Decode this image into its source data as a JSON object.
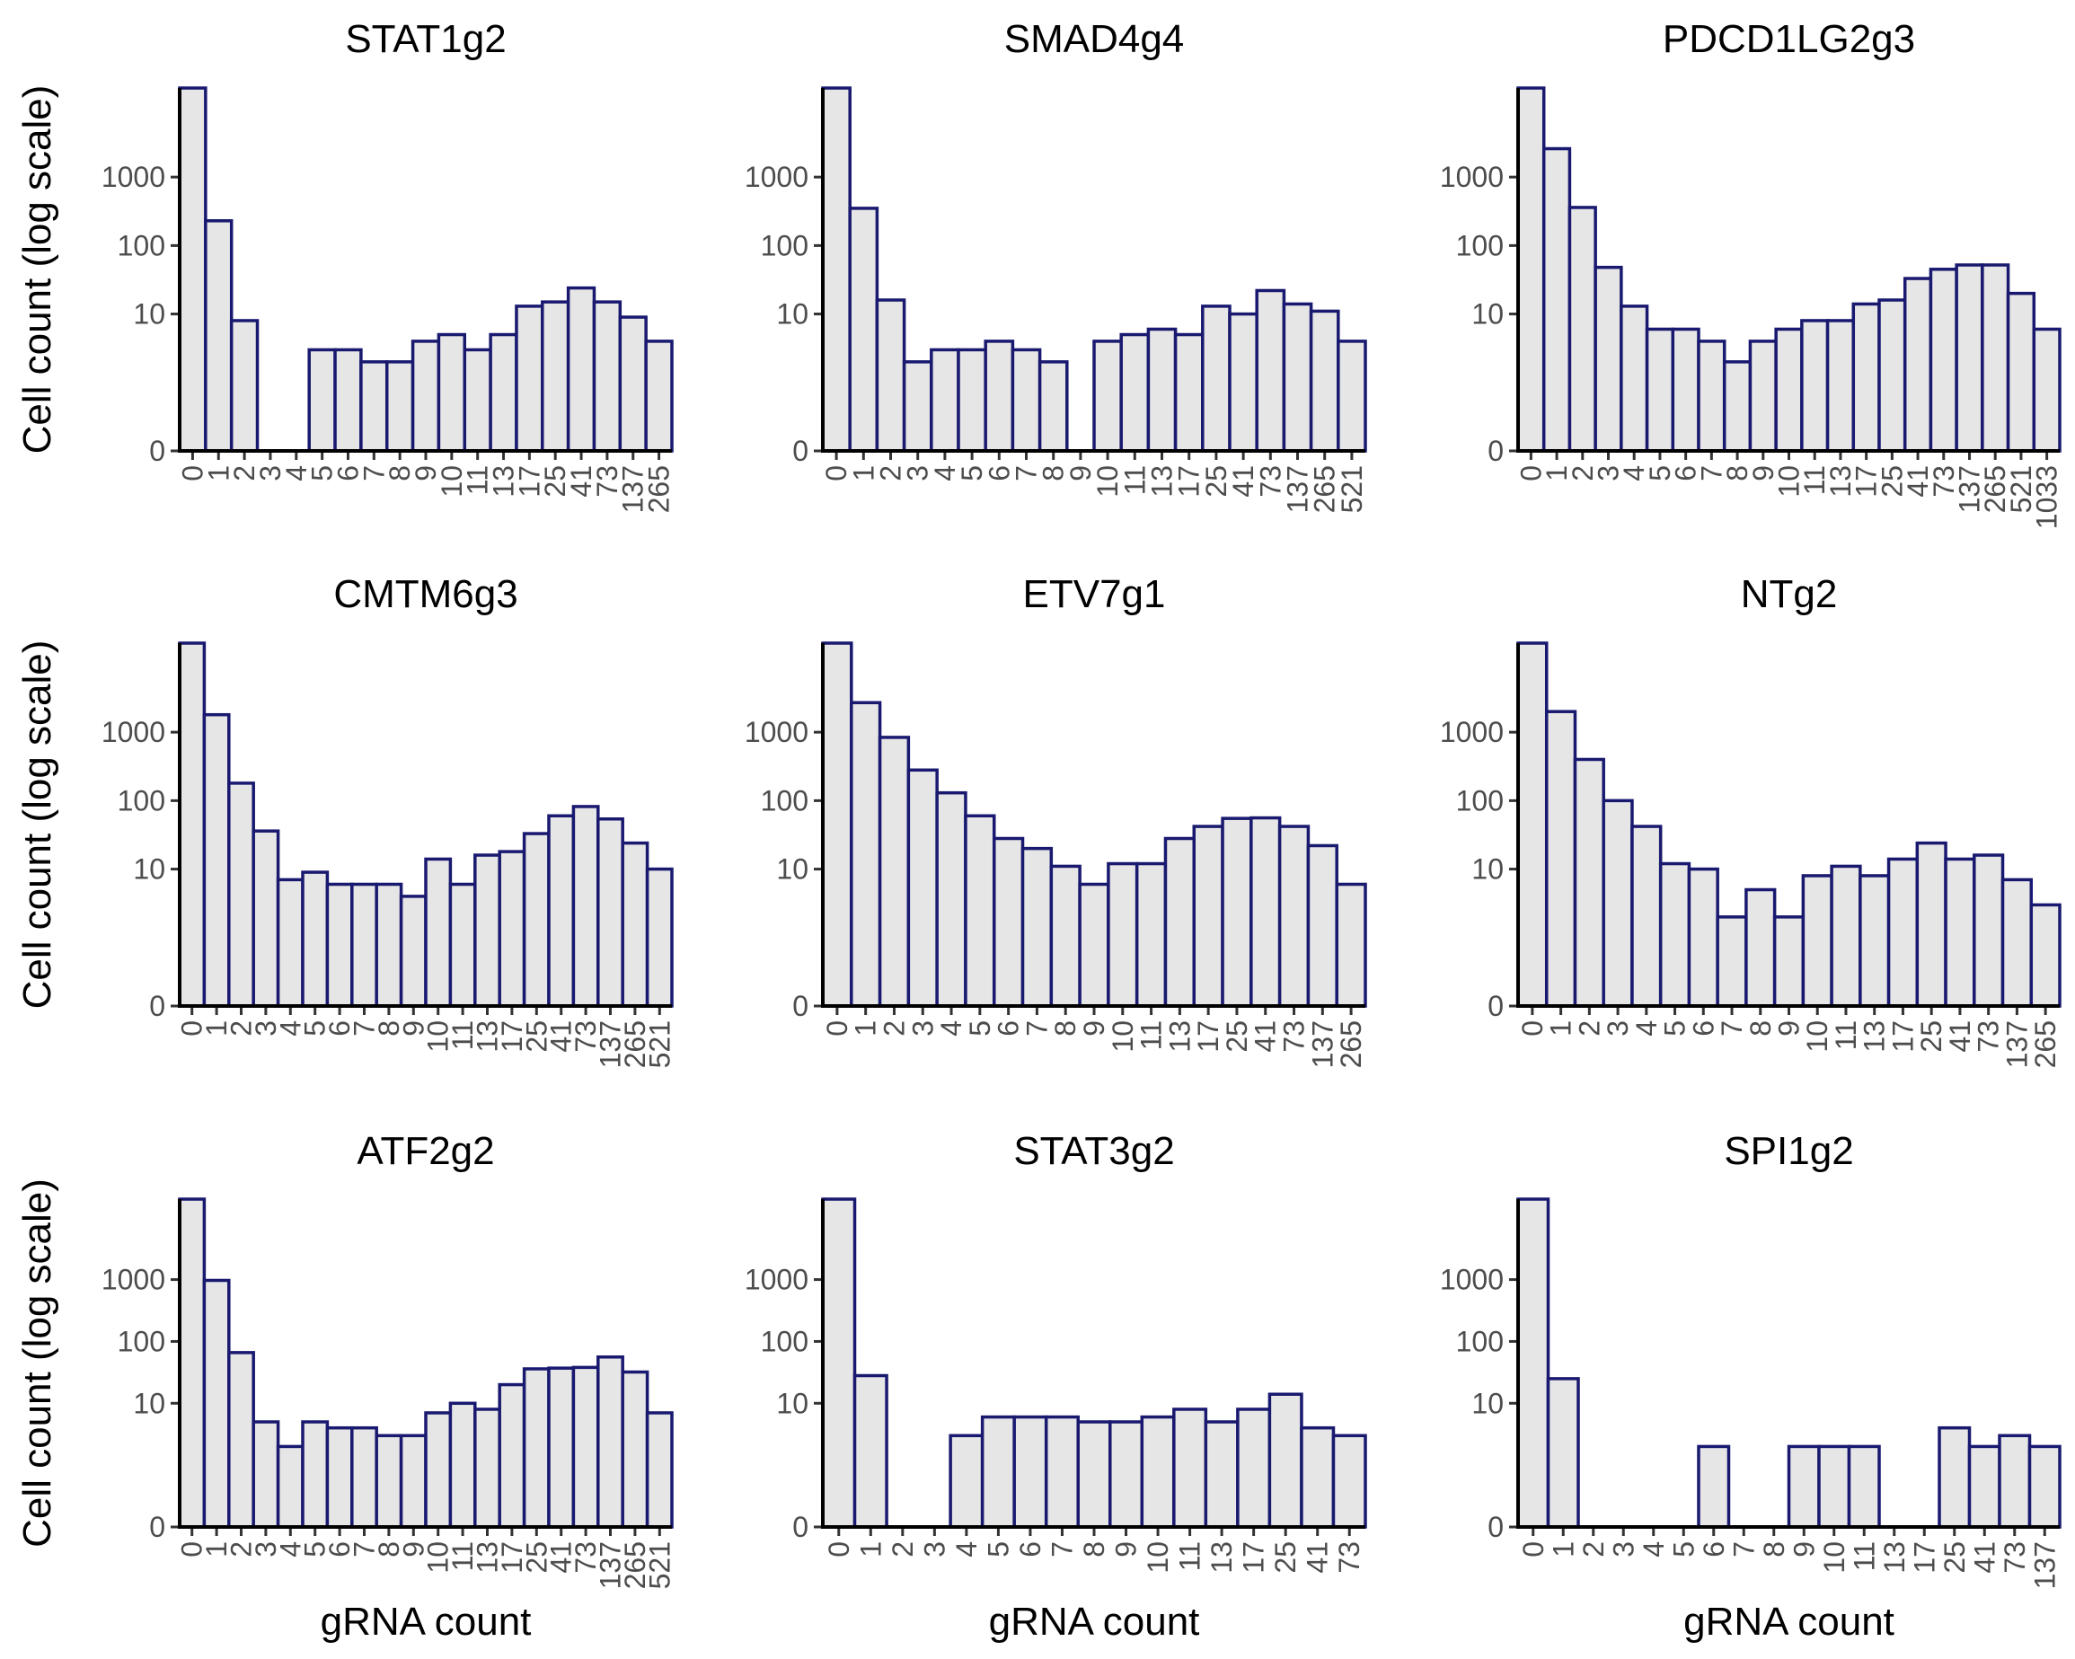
{
  "colors": {
    "bar_fill": "#e6e6e6",
    "bar_stroke": "#191970",
    "axis": "#000000",
    "tick_text": "#4d4d4d"
  },
  "y_axis_label": "Cell count (log scale)",
  "x_axis_label": "gRNA count",
  "chart_data": [
    {
      "type": "bar",
      "title": "STAT1g2",
      "scale": "log",
      "ytick_labels": [
        "0",
        "10",
        "100",
        "1000"
      ],
      "categories": [
        "0",
        "1",
        "2",
        "3",
        "4",
        "5",
        "6",
        "7",
        "8",
        "9",
        "10",
        "11",
        "13",
        "17",
        "25",
        "41",
        "73",
        "137",
        "265"
      ],
      "values": [
        20000,
        230,
        8,
        0,
        0,
        3,
        3,
        2,
        2,
        4,
        5,
        3,
        5,
        13,
        15,
        24,
        15,
        9,
        4
      ]
    },
    {
      "type": "bar",
      "title": "SMAD4g4",
      "scale": "log",
      "ytick_labels": [
        "0",
        "10",
        "100",
        "1000"
      ],
      "categories": [
        "0",
        "1",
        "2",
        "3",
        "4",
        "5",
        "6",
        "7",
        "8",
        "9",
        "10",
        "11",
        "13",
        "17",
        "25",
        "41",
        "73",
        "137",
        "265",
        "521"
      ],
      "values": [
        20000,
        350,
        16,
        2,
        3,
        3,
        4,
        3,
        2,
        0,
        4,
        5,
        6,
        5,
        13,
        10,
        22,
        14,
        11,
        4
      ]
    },
    {
      "type": "bar",
      "title": "PDCD1LG2g3",
      "scale": "log",
      "ytick_labels": [
        "0",
        "10",
        "100",
        "1000"
      ],
      "categories": [
        "0",
        "1",
        "2",
        "3",
        "4",
        "5",
        "6",
        "7",
        "8",
        "9",
        "10",
        "11",
        "13",
        "17",
        "25",
        "41",
        "73",
        "137",
        "265",
        "521",
        "1033"
      ],
      "values": [
        20000,
        2600,
        360,
        48,
        13,
        6,
        6,
        4,
        2,
        4,
        6,
        8,
        8,
        14,
        16,
        33,
        45,
        52,
        52,
        20,
        6
      ]
    },
    {
      "type": "bar",
      "title": "CMTM6g3",
      "scale": "log",
      "ytick_labels": [
        "0",
        "10",
        "100",
        "1000"
      ],
      "categories": [
        "0",
        "1",
        "2",
        "3",
        "4",
        "5",
        "6",
        "7",
        "8",
        "9",
        "10",
        "11",
        "13",
        "17",
        "25",
        "41",
        "73",
        "137",
        "265",
        "521"
      ],
      "values": [
        20000,
        1800,
        180,
        36,
        7,
        9,
        6,
        6,
        6,
        4,
        14,
        6,
        16,
        18,
        33,
        60,
        82,
        54,
        24,
        10
      ]
    },
    {
      "type": "bar",
      "title": "ETV7g1",
      "scale": "log",
      "ytick_labels": [
        "0",
        "10",
        "100",
        "1000"
      ],
      "categories": [
        "0",
        "1",
        "2",
        "3",
        "4",
        "5",
        "6",
        "7",
        "8",
        "9",
        "10",
        "11",
        "13",
        "17",
        "25",
        "41",
        "73",
        "137",
        "265"
      ],
      "values": [
        20000,
        2700,
        840,
        280,
        130,
        60,
        28,
        20,
        11,
        6,
        12,
        12,
        28,
        42,
        55,
        56,
        42,
        22,
        6
      ]
    },
    {
      "type": "bar",
      "title": "NTg2",
      "scale": "log",
      "ytick_labels": [
        "0",
        "10",
        "100",
        "1000"
      ],
      "categories": [
        "0",
        "1",
        "2",
        "3",
        "4",
        "5",
        "6",
        "7",
        "8",
        "9",
        "10",
        "11",
        "13",
        "17",
        "25",
        "41",
        "73",
        "137",
        "265"
      ],
      "values": [
        20000,
        2000,
        400,
        100,
        42,
        12,
        10,
        2,
        5,
        2,
        8,
        11,
        8,
        14,
        24,
        14,
        16,
        7,
        3
      ]
    },
    {
      "type": "bar",
      "title": "ATF2g2",
      "scale": "log",
      "ytick_labels": [
        "0",
        "10",
        "100",
        "1000"
      ],
      "categories": [
        "0",
        "1",
        "2",
        "3",
        "4",
        "5",
        "6",
        "7",
        "8",
        "9",
        "10",
        "11",
        "13",
        "17",
        "25",
        "41",
        "73",
        "137",
        "265",
        "521"
      ],
      "values": [
        20000,
        970,
        66,
        5,
        2,
        5,
        4,
        4,
        3,
        3,
        7,
        10,
        8,
        20,
        36,
        37,
        38,
        56,
        32,
        7
      ]
    },
    {
      "type": "bar",
      "title": "STAT3g2",
      "scale": "log",
      "ytick_labels": [
        "0",
        "10",
        "100",
        "1000"
      ],
      "categories": [
        "0",
        "1",
        "2",
        "3",
        "4",
        "5",
        "6",
        "7",
        "8",
        "9",
        "10",
        "11",
        "13",
        "17",
        "25",
        "41",
        "73"
      ],
      "values": [
        20000,
        28,
        0,
        0,
        3,
        6,
        6,
        6,
        5,
        5,
        6,
        8,
        5,
        8,
        14,
        4,
        3
      ]
    },
    {
      "type": "bar",
      "title": "SPI1g2",
      "scale": "log",
      "ytick_labels": [
        "0",
        "10",
        "100",
        "1000"
      ],
      "categories": [
        "0",
        "1",
        "2",
        "3",
        "4",
        "5",
        "6",
        "7",
        "8",
        "9",
        "10",
        "11",
        "13",
        "17",
        "25",
        "41",
        "73",
        "137"
      ],
      "values": [
        20000,
        25,
        0,
        0,
        0,
        0,
        2,
        0,
        0,
        2,
        2,
        2,
        0,
        0,
        4,
        2,
        3,
        2
      ]
    }
  ]
}
